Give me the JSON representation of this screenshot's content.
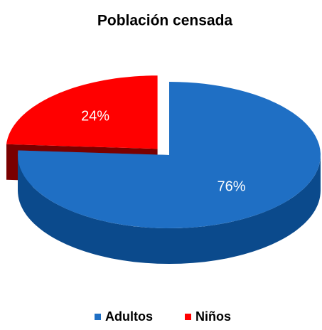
{
  "chart_data": {
    "type": "pie",
    "title": "Población censada",
    "categories": [
      "Adultos",
      "Niños"
    ],
    "values": [
      76,
      24
    ],
    "value_labels": [
      "76%",
      "24%"
    ],
    "colors": [
      "#1f6fc4",
      "#ff0000"
    ],
    "side_colors": [
      "#0b4a8c",
      "#7a0000"
    ]
  }
}
